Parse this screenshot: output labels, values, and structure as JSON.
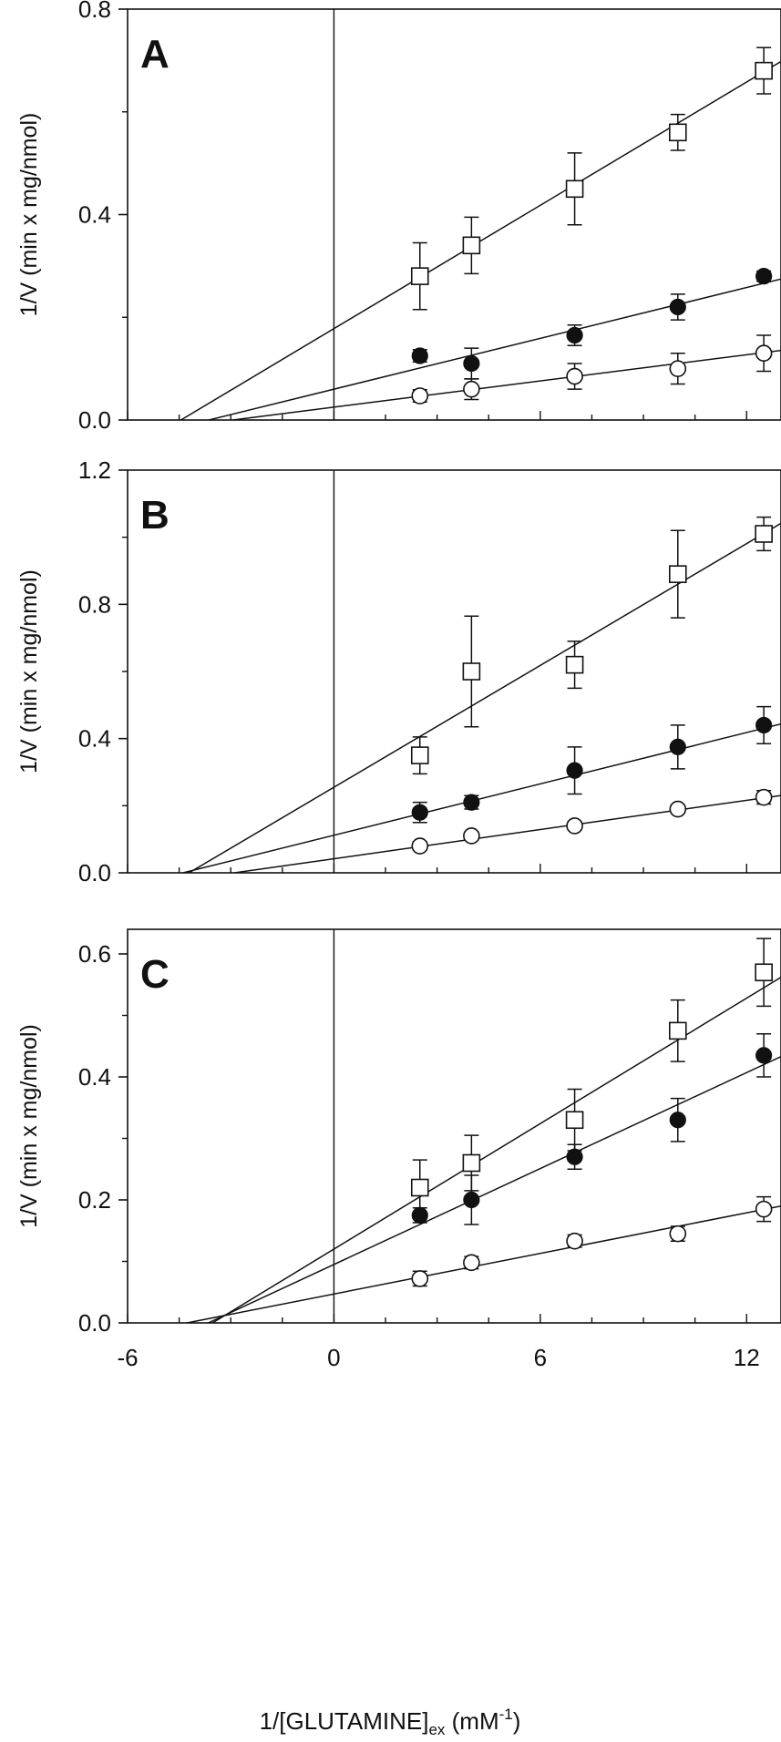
{
  "figure": {
    "xlabel_main": "1/[GLUTAMINE]",
    "xlabel_sub": "ex",
    "xlabel_unit_open": " (mM",
    "xlabel_sup": "-1",
    "xlabel_unit_close": ")",
    "colors": {
      "ink": "#111111",
      "hollow": "#ffffff"
    }
  },
  "chart_data": [
    {
      "type": "scatter",
      "panel": "A",
      "ylabel": "1/V (min x mg/nmol)",
      "xlim": [
        -6,
        13
      ],
      "ylim": [
        0,
        0.8
      ],
      "xticks": [
        -6,
        0,
        6,
        12
      ],
      "xtick_labels": [
        "-6",
        "0",
        "6",
        "12"
      ],
      "yticks": [
        0.0,
        0.4,
        0.8
      ],
      "ytick_labels": [
        "0.0",
        "0.4",
        "0.8"
      ],
      "series": [
        {
          "marker": "open-square",
          "x": [
            2.5,
            4,
            7,
            10,
            12.5
          ],
          "y": [
            0.28,
            0.34,
            0.45,
            0.56,
            0.68
          ],
          "err": [
            0.065,
            0.055,
            0.07,
            0.035,
            0.045
          ],
          "fit": [
            0.178,
            0.04
          ]
        },
        {
          "marker": "filled-circle",
          "x": [
            2.5,
            4,
            7,
            10,
            12.5
          ],
          "y": [
            0.125,
            0.11,
            0.165,
            0.22,
            0.28
          ],
          "err": [
            0.012,
            0.03,
            0.02,
            0.025,
            0.01
          ],
          "fit": [
            0.06,
            0.0165
          ]
        },
        {
          "marker": "open-circle",
          "x": [
            2.5,
            4,
            7,
            10,
            12.5
          ],
          "y": [
            0.047,
            0.06,
            0.085,
            0.1,
            0.13
          ],
          "err": [
            0.012,
            0.02,
            0.025,
            0.03,
            0.035
          ],
          "fit": [
            0.025,
            0.0085
          ]
        }
      ]
    },
    {
      "type": "scatter",
      "panel": "B",
      "ylabel": "1/V (min x mg/nmol)",
      "xlim": [
        -6,
        13
      ],
      "ylim": [
        0,
        1.2
      ],
      "xticks": [
        -6,
        0,
        6,
        12
      ],
      "xtick_labels": [
        "-6",
        "0",
        "6",
        "12"
      ],
      "yticks": [
        0.0,
        0.4,
        0.8,
        1.2
      ],
      "ytick_labels": [
        "0.0",
        "0.4",
        "0.8",
        "1.2"
      ],
      "series": [
        {
          "marker": "open-square",
          "x": [
            2.5,
            4,
            7,
            10,
            12.5
          ],
          "y": [
            0.35,
            0.6,
            0.62,
            0.89,
            1.01
          ],
          "err": [
            0.055,
            0.165,
            0.07,
            0.13,
            0.05
          ],
          "fit": [
            0.255,
            0.0605
          ]
        },
        {
          "marker": "filled-circle",
          "x": [
            2.5,
            4,
            7,
            10,
            12.5
          ],
          "y": [
            0.18,
            0.21,
            0.305,
            0.375,
            0.44
          ],
          "err": [
            0.03,
            0.02,
            0.07,
            0.065,
            0.055
          ],
          "fit": [
            0.112,
            0.0255
          ]
        },
        {
          "marker": "open-circle",
          "x": [
            2.5,
            4,
            7,
            10,
            12.5
          ],
          "y": [
            0.08,
            0.11,
            0.14,
            0.19,
            0.225
          ],
          "err": [
            0.012,
            0.012,
            0.012,
            0.012,
            0.02
          ],
          "fit": [
            0.042,
            0.0145
          ]
        }
      ]
    },
    {
      "type": "scatter",
      "panel": "C",
      "ylabel": "1/V (min x mg/nmol)",
      "xlim": [
        -6,
        13
      ],
      "ylim": [
        0,
        0.64
      ],
      "xticks": [
        -6,
        0,
        6,
        12
      ],
      "xtick_labels": [
        "-6",
        "0",
        "6",
        "12"
      ],
      "yticks": [
        0.0,
        0.2,
        0.4,
        0.6
      ],
      "ytick_labels": [
        "0.0",
        "0.2",
        "0.4",
        "0.6"
      ],
      "series": [
        {
          "marker": "open-square",
          "x": [
            2.5,
            4,
            7,
            10,
            12.5
          ],
          "y": [
            0.22,
            0.26,
            0.33,
            0.475,
            0.57
          ],
          "err": [
            0.045,
            0.045,
            0.05,
            0.05,
            0.055
          ],
          "fit": [
            0.12,
            0.034
          ]
        },
        {
          "marker": "filled-circle",
          "x": [
            2.5,
            4,
            7,
            10,
            12.5
          ],
          "y": [
            0.175,
            0.2,
            0.27,
            0.33,
            0.435
          ],
          "err": [
            0.012,
            0.04,
            0.02,
            0.035,
            0.035
          ],
          "fit": [
            0.095,
            0.026
          ]
        },
        {
          "marker": "open-circle",
          "x": [
            2.5,
            4,
            7,
            10,
            12.5
          ],
          "y": [
            0.072,
            0.098,
            0.133,
            0.145,
            0.185
          ],
          "err": [
            0.012,
            0.01,
            0.01,
            0.012,
            0.02
          ],
          "fit": [
            0.047,
            0.011
          ]
        }
      ]
    }
  ]
}
